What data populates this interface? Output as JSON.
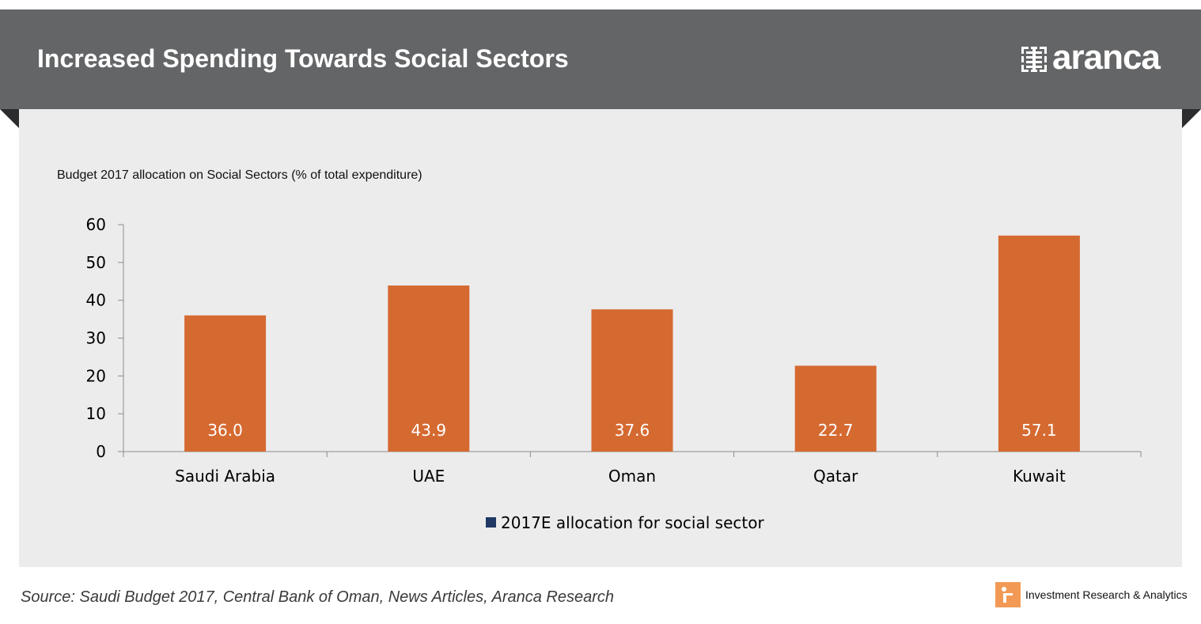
{
  "header": {
    "title": "Increased Spending Towards Social Sectors",
    "brand": "aranca",
    "banner_color": "#646567"
  },
  "chart_data": {
    "type": "bar",
    "title": "Budget 2017 allocation on Social Sectors (% of total expenditure)",
    "categories": [
      "Saudi Arabia",
      "UAE",
      "Oman",
      "Qatar",
      "Kuwait"
    ],
    "series": [
      {
        "name": "2017E allocation for social sector",
        "values": [
          36.0,
          43.9,
          37.6,
          22.7,
          57.1
        ],
        "color": "#d56a31",
        "legend_swatch_color": "#1f3864"
      }
    ],
    "data_labels": [
      "36.0",
      "43.9",
      "37.6",
      "22.7",
      "57.1"
    ],
    "ylim": [
      0,
      60
    ],
    "yticks": [
      0,
      10,
      20,
      30,
      40,
      50,
      60
    ],
    "grid": false,
    "legend_position": "bottom-center"
  },
  "footer": {
    "source": "Source: Saudi Budget 2017, Central Bank of Oman, News Articles, Aranca Research",
    "tagline": "Investment Research & Analytics",
    "badge_color": "#f29a55"
  }
}
